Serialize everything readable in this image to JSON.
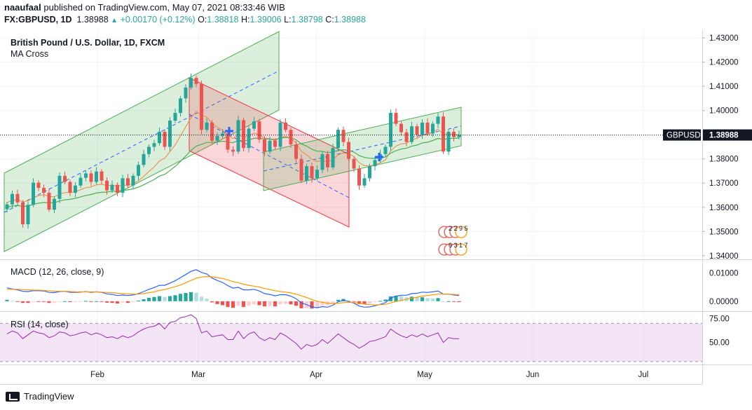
{
  "header": {
    "publisher": "naaufaal",
    "published_text": "published on TradingView.com, May 07, 2021 08:33:46 WIB",
    "symbol": "FX:GBPUSD, 1D",
    "last": "1.38988",
    "change": "+0.00170 (+0.12%)",
    "o_label": "O:",
    "o_value": "1.38818",
    "h_label": "H:",
    "h_value": "1.39006",
    "l_label": "L:",
    "l_value": "1.38798",
    "c_label": "C:",
    "c_value": "1.38988"
  },
  "main_pane": {
    "title": "British Pound / U.S. Dollar, 1D, FXCM",
    "indicator": "MA Cross",
    "price_badge_symbol": "GBPUSD",
    "price_badge_value": "1.38988",
    "event_icon_top": "2 2 9 5",
    "event_icon_bottom": "6 3 1 7"
  },
  "macd_pane": {
    "label": "MACD (12, 26, close, 9)"
  },
  "rsi_pane": {
    "label": "RSI (14, close)"
  },
  "footer": {
    "brand": "TradingView"
  },
  "colors": {
    "up": "#26a69a",
    "down": "#ef5350",
    "ma_fast": "#f0873a",
    "ma_slow": "#4caf50",
    "channel_green": "#4caf50",
    "channel_red": "#f23645",
    "macd": "#2962ff",
    "signal": "#ff9800",
    "rsi": "#9c27b0"
  },
  "chart_data": [
    {
      "type": "candlestick",
      "title": "British Pound / U.S. Dollar, 1D, FXCM",
      "y_ticks": [
        1.43,
        1.42,
        1.41,
        1.4,
        1.39,
        1.38,
        1.37,
        1.36,
        1.35,
        1.34
      ],
      "y_tick_labels": [
        "1.43000",
        "1.42000",
        "1.41000",
        "1.40000",
        "1.39000",
        "1.38000",
        "1.37000",
        "1.36000",
        "1.35000",
        "1.34000"
      ],
      "ylim": [
        1.3385,
        1.4335
      ],
      "x_labels": [
        "Feb",
        "Mar",
        "Apr",
        "May",
        "Jun",
        "Jul"
      ],
      "last_price": 1.38988,
      "close": [
        1.3612,
        1.3655,
        1.362,
        1.353,
        1.361,
        1.3702,
        1.368,
        1.366,
        1.359,
        1.3635,
        1.373,
        1.3705,
        1.366,
        1.369,
        1.3722,
        1.374,
        1.3705,
        1.3748,
        1.371,
        1.367,
        1.3693,
        1.366,
        1.372,
        1.369,
        1.373,
        1.3775,
        1.382,
        1.385,
        1.3865,
        1.3912,
        1.385,
        1.3958,
        1.399,
        1.405,
        1.4095,
        1.4135,
        1.411,
        1.392,
        1.395,
        1.3875,
        1.3895,
        1.3905,
        1.3838,
        1.383,
        1.396,
        1.3845,
        1.3925,
        1.3955,
        1.388,
        1.383,
        1.3875,
        1.385,
        1.395,
        1.392,
        1.386,
        1.38,
        1.371,
        1.377,
        1.372,
        1.3755,
        1.382,
        1.3765,
        1.3845,
        1.392,
        1.387,
        1.38,
        1.376,
        1.369,
        1.372,
        1.377,
        1.3795,
        1.382,
        1.385,
        1.399,
        1.3945,
        1.391,
        1.387,
        1.3935,
        1.39,
        1.395,
        1.3905,
        1.3945,
        1.3975,
        1.383,
        1.3912,
        1.389,
        1.3899
      ],
      "ma_fast": [
        1.362,
        1.3628,
        1.3632,
        1.3622,
        1.3627,
        1.364,
        1.3648,
        1.3652,
        1.3645,
        1.3643,
        1.3654,
        1.3661,
        1.3661,
        1.3665,
        1.3673,
        1.3681,
        1.3684,
        1.3693,
        1.3695,
        1.369,
        1.3691,
        1.3687,
        1.3692,
        1.3691,
        1.3697,
        1.3709,
        1.3728,
        1.3748,
        1.3767,
        1.3792,
        1.3803,
        1.383,
        1.3858,
        1.3895,
        1.3932,
        1.397,
        1.3996,
        1.398,
        1.3973,
        1.3948,
        1.3931,
        1.3919,
        1.3899,
        1.3884,
        1.39,
        1.3889,
        1.3895,
        1.3907,
        1.3901,
        1.3886,
        1.3883,
        1.3875,
        1.3889,
        1.3893,
        1.3885,
        1.3866,
        1.3831,
        1.3817,
        1.3798,
        1.3789,
        1.3793,
        1.3788,
        1.3797,
        1.3817,
        1.3825,
        1.3822,
        1.381,
        1.3784,
        1.3772,
        1.3771,
        1.3775,
        1.3784,
        1.3796,
        1.3833,
        1.3853,
        1.3862,
        1.3864,
        1.3879,
        1.3884,
        1.3898,
        1.39,
        1.391,
        1.3923,
        1.3902,
        1.3904,
        1.39,
        1.39
      ],
      "ma_slow": [
        1.36,
        1.3605,
        1.3608,
        1.3603,
        1.3605,
        1.3612,
        1.3617,
        1.362,
        1.3618,
        1.3619,
        1.3626,
        1.3631,
        1.3633,
        1.3637,
        1.3643,
        1.3649,
        1.3653,
        1.3659,
        1.3662,
        1.3663,
        1.3666,
        1.3666,
        1.367,
        1.3672,
        1.3676,
        1.3683,
        1.3693,
        1.3704,
        1.3715,
        1.3729,
        1.3736,
        1.3752,
        1.3769,
        1.379,
        1.3812,
        1.3835,
        1.3853,
        1.386,
        1.3868,
        1.3868,
        1.387,
        1.3873,
        1.387,
        1.3867,
        1.3877,
        1.3874,
        1.3878,
        1.3885,
        1.3886,
        1.3882,
        1.3882,
        1.388,
        1.3886,
        1.3889,
        1.3887,
        1.3879,
        1.3862,
        1.3853,
        1.384,
        1.3832,
        1.3831,
        1.3826,
        1.3828,
        1.3835,
        1.3838,
        1.3835,
        1.3828,
        1.3814,
        1.3806,
        1.3803,
        1.3802,
        1.3804,
        1.3808,
        1.3824,
        1.3834,
        1.3841,
        1.3844,
        1.3853,
        1.3857,
        1.3866,
        1.3869,
        1.3876,
        1.3885,
        1.388,
        1.3884,
        1.3885,
        1.3886
      ]
    },
    {
      "type": "line",
      "title": "MACD (12, 26, close, 9)",
      "y_ticks": [
        0.01,
        0.0
      ],
      "y_tick_labels": [
        "0.01000",
        "0.00000"
      ],
      "ylim": [
        -0.0035,
        0.0145
      ],
      "series": [
        {
          "name": "MACD",
          "values": [
            0.0047,
            0.0043,
            0.004,
            0.0035,
            0.0034,
            0.0037,
            0.0037,
            0.0036,
            0.0031,
            0.003,
            0.0034,
            0.0035,
            0.0031,
            0.0031,
            0.0032,
            0.0034,
            0.0031,
            0.0033,
            0.0031,
            0.0026,
            0.0024,
            0.002,
            0.0022,
            0.002,
            0.0022,
            0.0027,
            0.0034,
            0.0042,
            0.0048,
            0.0056,
            0.0056,
            0.0064,
            0.0072,
            0.0083,
            0.0094,
            0.0105,
            0.0111,
            0.0101,
            0.0096,
            0.0082,
            0.0073,
            0.0066,
            0.0055,
            0.0046,
            0.0049,
            0.004,
            0.004,
            0.0042,
            0.0036,
            0.0027,
            0.0024,
            0.0019,
            0.0023,
            0.0023,
            0.0018,
            0.0009,
            -0.0006,
            -0.0012,
            -0.002,
            -0.0023,
            -0.0019,
            -0.0021,
            -0.0014,
            -0.0002,
            0.0003,
            -0.0001,
            -0.0007,
            -0.0017,
            -0.0021,
            -0.002,
            -0.0016,
            -0.0011,
            -0.0005,
            0.0011,
            0.0018,
            0.0021,
            0.0021,
            0.0027,
            0.0028,
            0.0032,
            0.0031,
            0.0033,
            0.0036,
            0.0025,
            0.0025,
            0.0022,
            0.002
          ]
        },
        {
          "name": "Signal",
          "values": [
            0.0042,
            0.0042,
            0.0042,
            0.0041,
            0.004,
            0.0039,
            0.0039,
            0.0038,
            0.0037,
            0.0035,
            0.0035,
            0.0035,
            0.0034,
            0.0033,
            0.0033,
            0.0033,
            0.0033,
            0.0033,
            0.0032,
            0.0031,
            0.003,
            0.0028,
            0.0027,
            0.0026,
            0.0025,
            0.0025,
            0.0027,
            0.003,
            0.0033,
            0.0038,
            0.0041,
            0.0046,
            0.0051,
            0.0057,
            0.0065,
            0.0073,
            0.0081,
            0.0085,
            0.0087,
            0.0086,
            0.0083,
            0.008,
            0.0075,
            0.0069,
            0.0065,
            0.006,
            0.0056,
            0.0053,
            0.005,
            0.0045,
            0.0041,
            0.0037,
            0.0034,
            0.0032,
            0.0029,
            0.0025,
            0.0019,
            0.0013,
            0.0006,
            0.0,
            -0.0004,
            -0.0007,
            -0.0008,
            -0.0007,
            -0.0005,
            -0.0004,
            -0.0005,
            -0.0007,
            -0.001,
            -0.0012,
            -0.0013,
            -0.0012,
            -0.0011,
            -0.0006,
            -0.0001,
            0.0003,
            0.0007,
            0.0011,
            0.0014,
            0.0018,
            0.002,
            0.0023,
            0.0025,
            0.0025,
            0.0025,
            0.0024,
            0.0023
          ]
        }
      ]
    },
    {
      "type": "line",
      "title": "RSI (14, close)",
      "y_ticks": [
        75,
        50
      ],
      "y_tick_labels": [
        "75.00",
        "50.00"
      ],
      "ylim": [
        27,
        82
      ],
      "band": [
        30,
        70
      ],
      "series": [
        {
          "name": "RSI",
          "values": [
            59,
            62,
            60,
            54,
            58,
            62,
            60,
            59,
            55,
            57,
            61,
            60,
            57,
            58,
            60,
            61,
            58,
            60,
            58,
            55,
            56,
            54,
            57,
            55,
            57,
            61,
            64,
            66,
            67,
            70,
            64,
            71,
            72,
            76,
            77,
            79,
            75,
            60,
            62,
            56,
            57,
            58,
            53,
            53,
            62,
            54,
            59,
            61,
            55,
            52,
            55,
            53,
            60,
            57,
            53,
            49,
            43,
            48,
            46,
            48,
            53,
            49,
            54,
            59,
            55,
            51,
            48,
            44,
            47,
            51,
            52,
            54,
            56,
            64,
            60,
            57,
            55,
            58,
            56,
            59,
            56,
            58,
            60,
            50,
            55,
            54,
            54
          ]
        }
      ]
    }
  ]
}
